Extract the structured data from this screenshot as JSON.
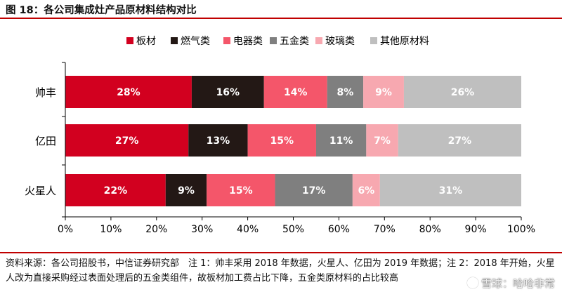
{
  "title": "图 18：各公司集成灶产品原材料结构对比",
  "source_note": "资料来源：各公司招股书，中信证券研究部　注 1：帅丰采用 2018 年数据，火星人、亿田为 2019 年数据；注 2：2018 年开始，火星人改为直接采购经过表面处理后的五金类组件，故板材加工费占比下降，五金类原材料的占比较高",
  "watermark": "雪球：哈哈非常",
  "colors": {
    "accent": "#c00000",
    "series": [
      "#d2001f",
      "#231815",
      "#f4566a",
      "#7f7f7f",
      "#f7a8b0",
      "#bfbfbf"
    ],
    "label_light": "#ffffff",
    "label_dark": "#000000"
  },
  "chart_data": {
    "type": "bar",
    "orientation": "horizontal",
    "stacked": true,
    "categories": [
      "帅丰",
      "亿田",
      "火星人"
    ],
    "series": [
      {
        "name": "板材",
        "values": [
          28,
          27,
          22
        ],
        "labels": [
          "28%",
          "27%",
          "22%"
        ]
      },
      {
        "name": "燃气类",
        "values": [
          16,
          13,
          9
        ],
        "labels": [
          "16%",
          "13%",
          "9%"
        ]
      },
      {
        "name": "电器类",
        "values": [
          14,
          15,
          15
        ],
        "labels": [
          "14%",
          "15%",
          "15%"
        ]
      },
      {
        "name": "五金类",
        "values": [
          8,
          11,
          17
        ],
        "labels": [
          "8%",
          "11%",
          "17%"
        ]
      },
      {
        "name": "玻璃类",
        "values": [
          9,
          7,
          6
        ],
        "labels": [
          "9%",
          "7%",
          "6%"
        ]
      },
      {
        "name": "其他原材料",
        "values": [
          26,
          27,
          31
        ],
        "labels": [
          "26%",
          "27%",
          "31%"
        ]
      }
    ],
    "xlim": [
      0,
      100
    ],
    "x_ticks": [
      0,
      10,
      20,
      30,
      40,
      50,
      60,
      70,
      80,
      90,
      100
    ],
    "x_tick_labels": [
      "0%",
      "10%",
      "20%",
      "30%",
      "40%",
      "50%",
      "60%",
      "70%",
      "80%",
      "90%",
      "100%"
    ],
    "grid": false,
    "legend_position": "top"
  }
}
